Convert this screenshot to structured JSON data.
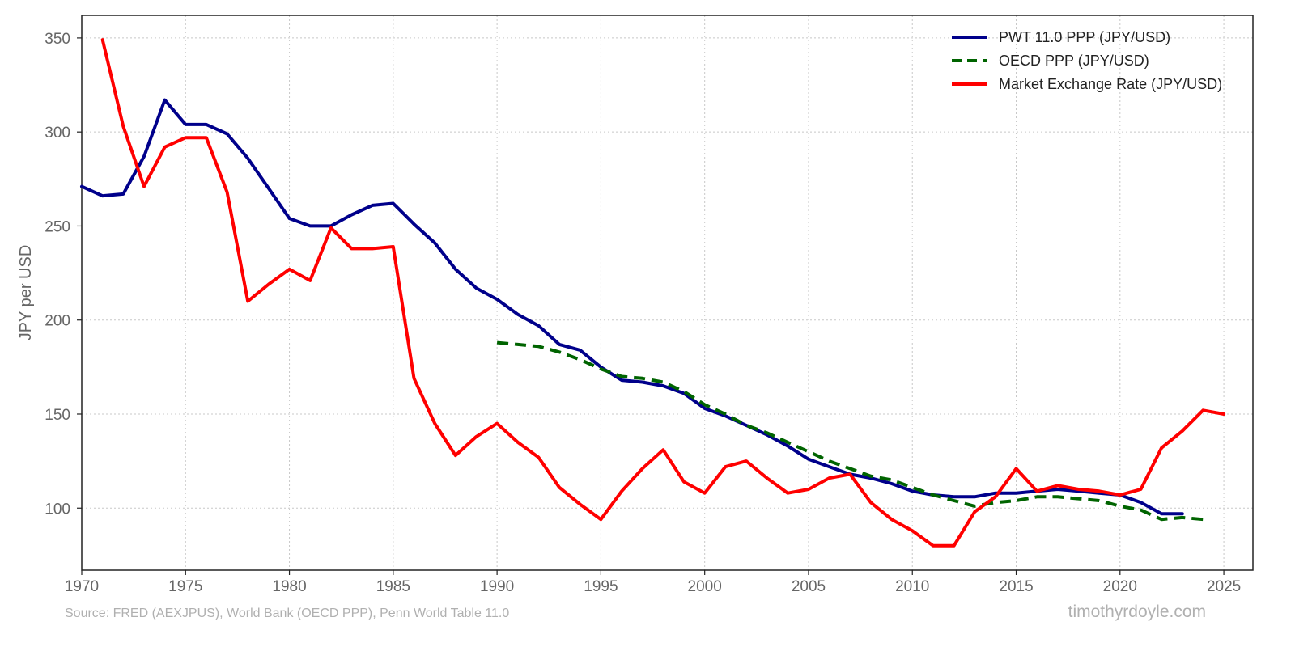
{
  "chart_data": {
    "type": "line",
    "title": "",
    "xlabel": "",
    "ylabel": "JPY per USD",
    "xlim": [
      1970,
      2026.4
    ],
    "ylim": [
      67,
      362
    ],
    "xticks": [
      1970,
      1975,
      1980,
      1985,
      1990,
      1995,
      2000,
      2005,
      2010,
      2015,
      2020,
      2025
    ],
    "yticks": [
      100,
      150,
      200,
      250,
      300,
      350
    ],
    "grid": true,
    "legend_position": "top-right",
    "series": [
      {
        "name": "PWT 11.0 PPP (JPY/USD)",
        "color": "#00008b",
        "style": "solid",
        "x": [
          1970,
          1971,
          1972,
          1973,
          1974,
          1975,
          1976,
          1977,
          1978,
          1979,
          1980,
          1981,
          1982,
          1983,
          1984,
          1985,
          1986,
          1987,
          1988,
          1989,
          1990,
          1991,
          1992,
          1993,
          1994,
          1995,
          1996,
          1997,
          1998,
          1999,
          2000,
          2001,
          2002,
          2003,
          2004,
          2005,
          2006,
          2007,
          2008,
          2009,
          2010,
          2011,
          2012,
          2013,
          2014,
          2015,
          2016,
          2017,
          2018,
          2019,
          2020,
          2021,
          2022,
          2023
        ],
        "values": [
          271,
          266,
          267,
          287,
          317,
          304,
          304,
          299,
          286,
          270,
          254,
          250,
          250,
          256,
          261,
          262,
          251,
          241,
          227,
          217,
          211,
          203,
          197,
          187,
          184,
          175,
          168,
          167,
          165,
          161,
          153,
          149,
          144,
          139,
          133,
          126,
          122,
          118,
          116,
          113,
          109,
          107,
          106,
          106,
          108,
          108,
          109,
          110,
          109,
          108,
          107,
          103,
          97,
          97
        ]
      },
      {
        "name": "OECD PPP (JPY/USD)",
        "color": "#006400",
        "style": "dashed",
        "x": [
          1990,
          1991,
          1992,
          1993,
          1994,
          1995,
          1996,
          1997,
          1998,
          1999,
          2000,
          2001,
          2002,
          2003,
          2004,
          2005,
          2006,
          2007,
          2008,
          2009,
          2010,
          2011,
          2012,
          2013,
          2014,
          2015,
          2016,
          2017,
          2018,
          2019,
          2020,
          2021,
          2022,
          2023,
          2024
        ],
        "values": [
          188,
          187,
          186,
          183,
          179,
          174,
          170,
          169,
          167,
          162,
          155,
          150,
          144,
          140,
          135,
          130,
          125,
          121,
          117,
          115,
          111,
          107,
          104,
          101,
          103,
          104,
          106,
          106,
          105,
          104,
          101,
          99,
          94,
          95,
          94
        ]
      },
      {
        "name": "Market Exchange Rate (JPY/USD)",
        "color": "#ff0000",
        "style": "solid",
        "x": [
          1971,
          1972,
          1973,
          1974,
          1975,
          1976,
          1977,
          1978,
          1979,
          1980,
          1981,
          1982,
          1983,
          1984,
          1985,
          1986,
          1987,
          1988,
          1989,
          1990,
          1991,
          1992,
          1993,
          1994,
          1995,
          1996,
          1997,
          1998,
          1999,
          2000,
          2001,
          2002,
          2003,
          2004,
          2005,
          2006,
          2007,
          2008,
          2009,
          2010,
          2011,
          2012,
          2013,
          2014,
          2015,
          2016,
          2017,
          2018,
          2019,
          2020,
          2021,
          2022,
          2023,
          2024,
          2025
        ],
        "values": [
          349,
          303,
          271,
          292,
          297,
          297,
          268,
          210,
          219,
          227,
          221,
          249,
          238,
          238,
          239,
          169,
          145,
          128,
          138,
          145,
          135,
          127,
          111,
          102,
          94,
          109,
          121,
          131,
          114,
          108,
          122,
          125,
          116,
          108,
          110,
          116,
          118,
          103,
          94,
          88,
          80,
          80,
          98,
          106,
          121,
          109,
          112,
          110,
          109,
          107,
          110,
          132,
          141,
          152,
          150
        ]
      }
    ]
  },
  "footer": {
    "source": "Source: FRED (AEXJPUS), World Bank (OECD PPP), Penn World Table 11.0",
    "brand": "timothyrdoyle.com"
  }
}
